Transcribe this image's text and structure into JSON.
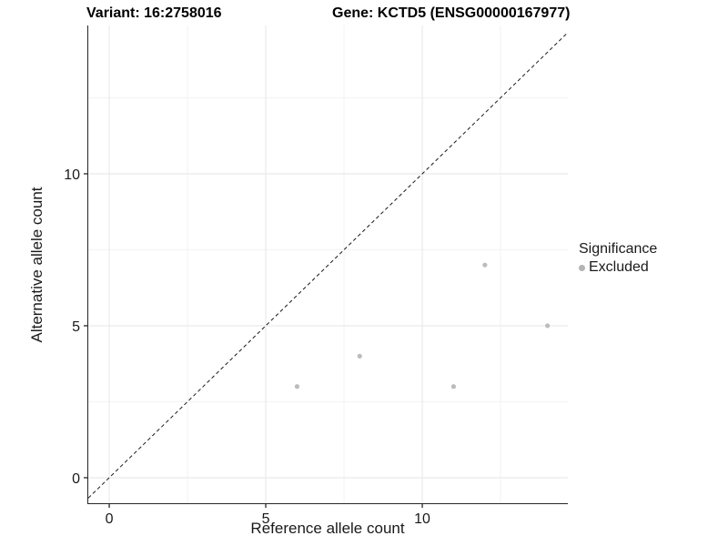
{
  "figure": {
    "title_left": "Variant: 16:2758016",
    "title_right": "Gene: KCTD5 (ENSG00000167977)"
  },
  "chart_data": {
    "type": "scatter",
    "title": "Variant: 16:2758016 | Gene: KCTD5 (ENSG00000167977)",
    "xlabel": "Reference allele count",
    "ylabel": "Alternative allele count",
    "x_range": [
      -0.67,
      14.65
    ],
    "y_range": [
      -0.84,
      14.88
    ],
    "x_major_ticks": [
      0,
      5,
      10
    ],
    "y_major_ticks": [
      0,
      5,
      10
    ],
    "x_minor_gridlines": [
      2.5,
      7.5,
      12.5
    ],
    "y_minor_gridlines": [
      2.5,
      7.5,
      12.5
    ],
    "grid": true,
    "series": [
      {
        "name": "Excluded",
        "color": "#bcbcbc",
        "points": [
          [
            6,
            3
          ],
          [
            8,
            4
          ],
          [
            11,
            3
          ],
          [
            12,
            7
          ],
          [
            14,
            5
          ]
        ]
      }
    ],
    "reference_line": {
      "type": "identity",
      "style": "dashed",
      "color": "#1a1a1a"
    },
    "legend": {
      "title": "Significance",
      "position": "right",
      "entries": [
        {
          "label": "Excluded",
          "color": "#b3b3b3"
        }
      ]
    },
    "colors": {
      "grid_major": "#e6e6e6",
      "grid_minor": "#f3f3f3",
      "axis_line": "#262626",
      "tick": "#262626"
    }
  }
}
